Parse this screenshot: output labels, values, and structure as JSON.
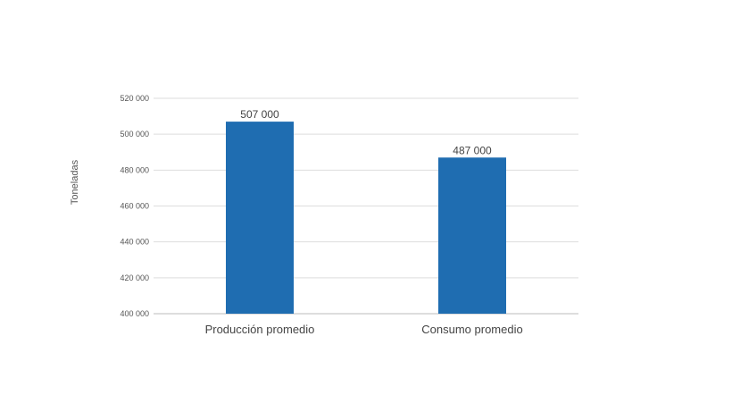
{
  "chart_data": {
    "type": "bar",
    "title": "",
    "xlabel": "",
    "ylabel": "Toneladas",
    "ylim": [
      400000,
      520000
    ],
    "yticks": [
      400000,
      420000,
      440000,
      460000,
      480000,
      500000,
      520000
    ],
    "ytick_labels": [
      "400 000",
      "420 000",
      "440 000",
      "460 000",
      "480 000",
      "500 000",
      "520 000"
    ],
    "categories": [
      "Producción promedio",
      "Consumo promedio"
    ],
    "values": [
      507000,
      487000
    ],
    "data_labels": [
      "507 000",
      "487 000"
    ],
    "bar_color": "#1f6db1",
    "grid": true,
    "legend": "none"
  }
}
